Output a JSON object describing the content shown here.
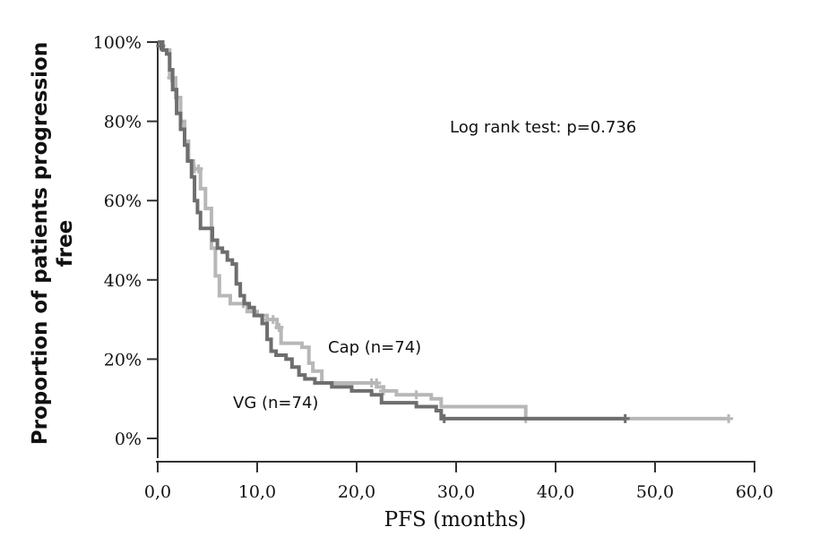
{
  "chart_data": {
    "type": "line",
    "title": "",
    "xlabel": "PFS (months)",
    "ylabel_line1": "Proportion of patients progression",
    "ylabel_line2": "free",
    "xlim": [
      0,
      60
    ],
    "ylim": [
      0,
      100
    ],
    "x_ticks": [
      0,
      10,
      20,
      30,
      40,
      50,
      60
    ],
    "x_tick_labels": [
      "0,0",
      "10,0",
      "20,0",
      "30,0",
      "40,0",
      "50,0",
      "60,0"
    ],
    "y_ticks": [
      0,
      20,
      40,
      60,
      80,
      100
    ],
    "y_tick_labels": [
      "0%",
      "20%",
      "40%",
      "60%",
      "80%",
      "100%"
    ],
    "grid": false,
    "annotations": {
      "test": "Log rank test: p=0.736",
      "cap_label": "Cap (n=74)",
      "vg_label": "VG (n=74)"
    },
    "series": [
      {
        "name": "Cap (n=74)",
        "color": "#b7b7b7",
        "step_points": [
          [
            0,
            100
          ],
          [
            0.5,
            98
          ],
          [
            1.2,
            91
          ],
          [
            1.8,
            86
          ],
          [
            2.3,
            80
          ],
          [
            2.7,
            75
          ],
          [
            3.1,
            70
          ],
          [
            3.6,
            68
          ],
          [
            4.3,
            63
          ],
          [
            4.8,
            58
          ],
          [
            5.4,
            48
          ],
          [
            5.8,
            41
          ],
          [
            6.2,
            36
          ],
          [
            7.3,
            34
          ],
          [
            8.2,
            34
          ],
          [
            9.0,
            32
          ],
          [
            10.0,
            31
          ],
          [
            11.0,
            30
          ],
          [
            12.0,
            28
          ],
          [
            12.4,
            24
          ],
          [
            13.0,
            24
          ],
          [
            14.5,
            23
          ],
          [
            15.2,
            19
          ],
          [
            15.6,
            17
          ],
          [
            16.5,
            14
          ],
          [
            18.0,
            14
          ],
          [
            21.0,
            14
          ],
          [
            22.0,
            13
          ],
          [
            22.7,
            12
          ],
          [
            24.0,
            11
          ],
          [
            27.5,
            10
          ],
          [
            28.5,
            8
          ],
          [
            37.0,
            8
          ],
          [
            37.0,
            5
          ],
          [
            57.4,
            5
          ]
        ],
        "censor_points": [
          [
            1.4,
            91
          ],
          [
            3.7,
            68
          ],
          [
            4.1,
            68
          ],
          [
            8.6,
            34
          ],
          [
            11.0,
            30
          ],
          [
            11.6,
            30
          ],
          [
            12.2,
            28
          ],
          [
            21.5,
            14
          ],
          [
            22.0,
            14
          ],
          [
            22.7,
            12
          ],
          [
            26.0,
            11
          ],
          [
            37.0,
            5
          ],
          [
            57.4,
            5
          ]
        ]
      },
      {
        "name": "VG (n=74)",
        "color": "#6e6e6e",
        "step_points": [
          [
            0,
            100
          ],
          [
            0.5,
            98
          ],
          [
            0.9,
            97
          ],
          [
            1.2,
            93
          ],
          [
            1.5,
            88
          ],
          [
            1.9,
            82
          ],
          [
            2.3,
            78
          ],
          [
            2.7,
            74
          ],
          [
            3.0,
            70
          ],
          [
            3.4,
            66
          ],
          [
            3.7,
            60
          ],
          [
            4.0,
            57
          ],
          [
            4.3,
            53
          ],
          [
            5.3,
            53
          ],
          [
            5.5,
            50
          ],
          [
            6.0,
            48
          ],
          [
            6.5,
            47
          ],
          [
            7.0,
            45
          ],
          [
            7.5,
            44
          ],
          [
            7.9,
            39
          ],
          [
            8.3,
            36
          ],
          [
            8.7,
            34
          ],
          [
            9.2,
            33
          ],
          [
            9.7,
            31
          ],
          [
            10.5,
            29
          ],
          [
            11.0,
            25
          ],
          [
            11.4,
            22
          ],
          [
            11.9,
            21
          ],
          [
            12.9,
            20
          ],
          [
            13.5,
            18
          ],
          [
            14.2,
            16
          ],
          [
            14.8,
            15
          ],
          [
            15.8,
            14
          ],
          [
            17.5,
            13
          ],
          [
            19.5,
            12
          ],
          [
            21.5,
            11
          ],
          [
            22.5,
            9
          ],
          [
            26.0,
            8
          ],
          [
            28.0,
            7
          ],
          [
            28.5,
            5
          ],
          [
            36.0,
            5
          ],
          [
            47.0,
            5
          ]
        ],
        "censor_points": [
          [
            0.3,
            99
          ],
          [
            28.8,
            5
          ],
          [
            47.0,
            5
          ]
        ]
      }
    ]
  }
}
